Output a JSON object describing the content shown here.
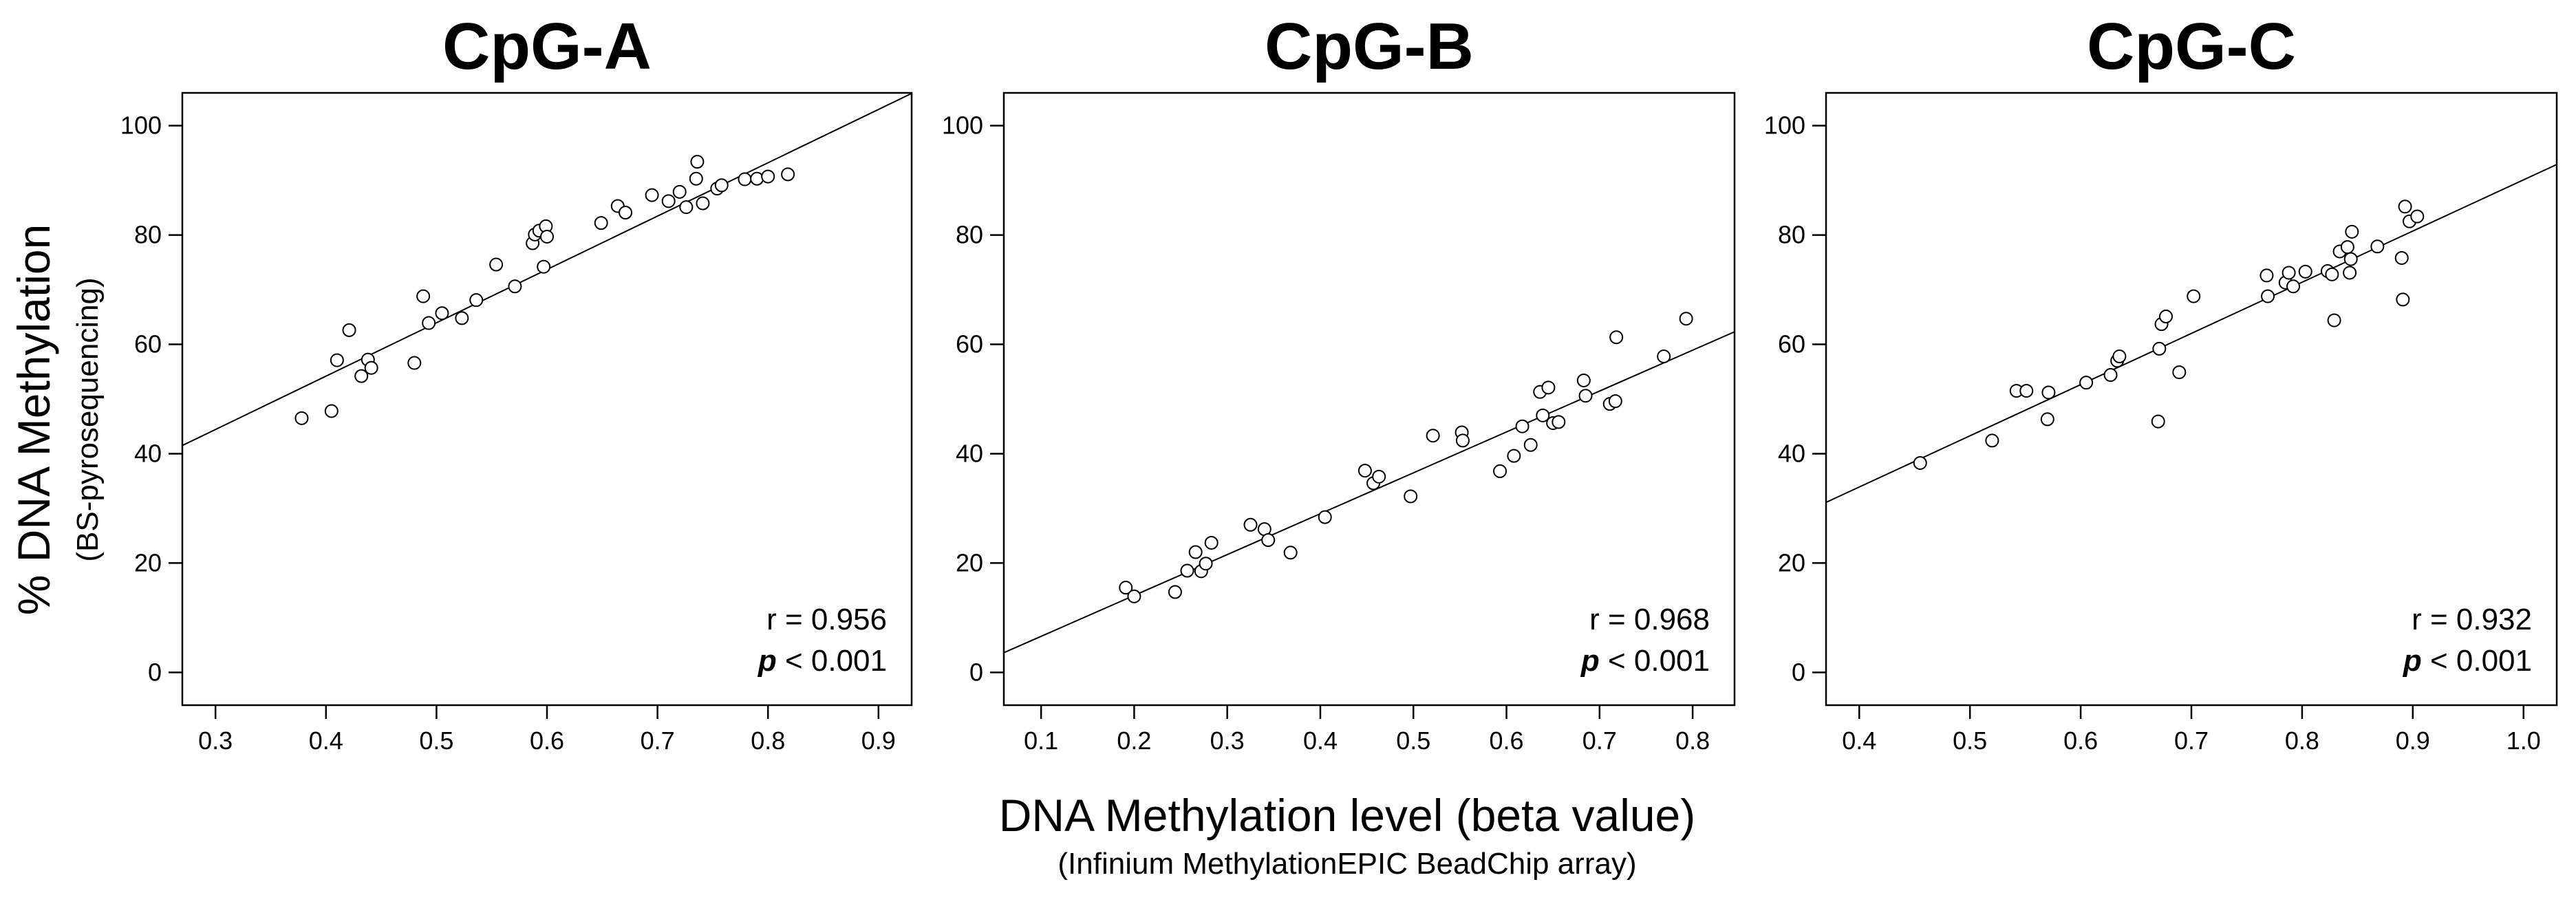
{
  "figure": {
    "ylabel_main": "% DNA Methylation",
    "ylabel_sub": "(BS-pyrosequencing)",
    "xlabel_main": "DNA Methylation level (beta value)",
    "xlabel_sub": "(Infinium MethylationEPIC BeadChip array)"
  },
  "chart_data": [
    {
      "type": "scatter",
      "title": "CpG-A",
      "xlabel": "DNA Methylation level (beta value)",
      "ylabel": "% DNA Methylation",
      "xlim": [
        0.27,
        0.93
      ],
      "ylim": [
        -6,
        106
      ],
      "xticks": [
        0.3,
        0.4,
        0.5,
        0.6,
        0.7,
        0.8,
        0.9
      ],
      "xtick_labels": [
        "0.3",
        "0.4",
        "0.5",
        "0.6",
        "0.7",
        "0.8",
        "0.9"
      ],
      "yticks": [
        0,
        20,
        40,
        60,
        80,
        100
      ],
      "ytick_labels": [
        "0",
        "20",
        "40",
        "60",
        "80",
        "100"
      ],
      "fit_line": {
        "x": [
          0.27,
          0.93
        ],
        "y": [
          41.5,
          105.9
        ]
      },
      "r_text": "r = 0.956",
      "p_italic": "p",
      "p_rest": " < 0.001",
      "points": [
        {
          "x": 0.378,
          "y": 46.5
        },
        {
          "x": 0.405,
          "y": 47.8
        },
        {
          "x": 0.41,
          "y": 57.1
        },
        {
          "x": 0.421,
          "y": 62.6
        },
        {
          "x": 0.432,
          "y": 54.2
        },
        {
          "x": 0.438,
          "y": 57.2
        },
        {
          "x": 0.441,
          "y": 55.7
        },
        {
          "x": 0.48,
          "y": 56.6
        },
        {
          "x": 0.488,
          "y": 68.8
        },
        {
          "x": 0.493,
          "y": 63.9
        },
        {
          "x": 0.505,
          "y": 65.7
        },
        {
          "x": 0.523,
          "y": 64.8
        },
        {
          "x": 0.536,
          "y": 68.1
        },
        {
          "x": 0.554,
          "y": 74.6
        },
        {
          "x": 0.571,
          "y": 70.6
        },
        {
          "x": 0.587,
          "y": 78.5
        },
        {
          "x": 0.589,
          "y": 80.1
        },
        {
          "x": 0.593,
          "y": 80.8
        },
        {
          "x": 0.597,
          "y": 74.2
        },
        {
          "x": 0.599,
          "y": 81.6
        },
        {
          "x": 0.6,
          "y": 79.7
        },
        {
          "x": 0.649,
          "y": 82.2
        },
        {
          "x": 0.664,
          "y": 85.3
        },
        {
          "x": 0.671,
          "y": 84.1
        },
        {
          "x": 0.695,
          "y": 87.3
        },
        {
          "x": 0.71,
          "y": 86.2
        },
        {
          "x": 0.72,
          "y": 87.9
        },
        {
          "x": 0.726,
          "y": 85.1
        },
        {
          "x": 0.735,
          "y": 90.3
        },
        {
          "x": 0.736,
          "y": 93.4
        },
        {
          "x": 0.741,
          "y": 85.8
        },
        {
          "x": 0.754,
          "y": 88.5
        },
        {
          "x": 0.758,
          "y": 89.1
        },
        {
          "x": 0.779,
          "y": 90.2
        },
        {
          "x": 0.79,
          "y": 90.3
        },
        {
          "x": 0.8,
          "y": 90.7
        },
        {
          "x": 0.818,
          "y": 91.1
        }
      ]
    },
    {
      "type": "scatter",
      "title": "CpG-B",
      "xlabel": "DNA Methylation level (beta value)",
      "ylabel": "% DNA Methylation",
      "xlim": [
        0.06,
        0.845
      ],
      "ylim": [
        -6,
        106
      ],
      "xticks": [
        0.1,
        0.2,
        0.3,
        0.4,
        0.5,
        0.6,
        0.7,
        0.8
      ],
      "xtick_labels": [
        "0.1",
        "0.2",
        "0.3",
        "0.4",
        "0.5",
        "0.6",
        "0.7",
        "0.8"
      ],
      "yticks": [
        0,
        20,
        40,
        60,
        80,
        100
      ],
      "ytick_labels": [
        "0",
        "20",
        "40",
        "60",
        "80",
        "100"
      ],
      "fit_line": {
        "x": [
          0.06,
          0.845
        ],
        "y": [
          3.6,
          62.3
        ]
      },
      "r_text": "r = 0.968",
      "p_italic": "p",
      "p_rest": " < 0.001",
      "points": [
        {
          "x": 0.191,
          "y": 15.5
        },
        {
          "x": 0.2,
          "y": 13.9
        },
        {
          "x": 0.244,
          "y": 14.7
        },
        {
          "x": 0.257,
          "y": 18.6
        },
        {
          "x": 0.266,
          "y": 22.0
        },
        {
          "x": 0.272,
          "y": 18.5
        },
        {
          "x": 0.277,
          "y": 19.9
        },
        {
          "x": 0.283,
          "y": 23.7
        },
        {
          "x": 0.325,
          "y": 27.0
        },
        {
          "x": 0.34,
          "y": 26.2
        },
        {
          "x": 0.344,
          "y": 24.2
        },
        {
          "x": 0.368,
          "y": 21.9
        },
        {
          "x": 0.405,
          "y": 28.4
        },
        {
          "x": 0.448,
          "y": 36.9
        },
        {
          "x": 0.457,
          "y": 34.6
        },
        {
          "x": 0.463,
          "y": 35.8
        },
        {
          "x": 0.497,
          "y": 32.2
        },
        {
          "x": 0.521,
          "y": 43.3
        },
        {
          "x": 0.552,
          "y": 43.9
        },
        {
          "x": 0.553,
          "y": 42.4
        },
        {
          "x": 0.593,
          "y": 36.8
        },
        {
          "x": 0.608,
          "y": 39.6
        },
        {
          "x": 0.617,
          "y": 45.0
        },
        {
          "x": 0.626,
          "y": 41.6
        },
        {
          "x": 0.636,
          "y": 51.3
        },
        {
          "x": 0.639,
          "y": 47.0
        },
        {
          "x": 0.645,
          "y": 52.1
        },
        {
          "x": 0.65,
          "y": 45.6
        },
        {
          "x": 0.656,
          "y": 45.8
        },
        {
          "x": 0.683,
          "y": 53.4
        },
        {
          "x": 0.685,
          "y": 50.6
        },
        {
          "x": 0.711,
          "y": 49.1
        },
        {
          "x": 0.717,
          "y": 49.6
        },
        {
          "x": 0.718,
          "y": 61.3
        },
        {
          "x": 0.769,
          "y": 57.8
        },
        {
          "x": 0.793,
          "y": 64.7
        }
      ]
    },
    {
      "type": "scatter",
      "title": "CpG-C",
      "xlabel": "DNA Methylation level (beta value)",
      "ylabel": "% DNA Methylation",
      "xlim": [
        0.37,
        1.03
      ],
      "ylim": [
        -6,
        106
      ],
      "xticks": [
        0.4,
        0.5,
        0.6,
        0.7,
        0.8,
        0.9,
        1.0
      ],
      "xtick_labels": [
        "0.4",
        "0.5",
        "0.6",
        "0.7",
        "0.8",
        "0.9",
        "1.0"
      ],
      "yticks": [
        0,
        20,
        40,
        60,
        80,
        100
      ],
      "ytick_labels": [
        "0",
        "20",
        "40",
        "60",
        "80",
        "100"
      ],
      "fit_line": {
        "x": [
          0.37,
          1.03
        ],
        "y": [
          31.1,
          92.9
        ]
      },
      "r_text": "r = 0.932",
      "p_italic": "p",
      "p_rest": " < 0.001",
      "points": [
        {
          "x": 0.455,
          "y": 38.3
        },
        {
          "x": 0.52,
          "y": 42.4
        },
        {
          "x": 0.542,
          "y": 51.5
        },
        {
          "x": 0.551,
          "y": 51.5
        },
        {
          "x": 0.57,
          "y": 46.3
        },
        {
          "x": 0.571,
          "y": 51.2
        },
        {
          "x": 0.605,
          "y": 53.0
        },
        {
          "x": 0.627,
          "y": 54.4
        },
        {
          "x": 0.633,
          "y": 57.0
        },
        {
          "x": 0.635,
          "y": 57.8
        },
        {
          "x": 0.67,
          "y": 45.9
        },
        {
          "x": 0.671,
          "y": 59.2
        },
        {
          "x": 0.673,
          "y": 63.7
        },
        {
          "x": 0.677,
          "y": 65.1
        },
        {
          "x": 0.689,
          "y": 54.9
        },
        {
          "x": 0.702,
          "y": 68.8
        },
        {
          "x": 0.768,
          "y": 72.6
        },
        {
          "x": 0.769,
          "y": 68.8
        },
        {
          "x": 0.785,
          "y": 71.3
        },
        {
          "x": 0.788,
          "y": 73.1
        },
        {
          "x": 0.792,
          "y": 70.6
        },
        {
          "x": 0.803,
          "y": 73.3
        },
        {
          "x": 0.823,
          "y": 73.4
        },
        {
          "x": 0.827,
          "y": 72.8
        },
        {
          "x": 0.829,
          "y": 64.4
        },
        {
          "x": 0.834,
          "y": 77.0
        },
        {
          "x": 0.841,
          "y": 77.8
        },
        {
          "x": 0.843,
          "y": 73.1
        },
        {
          "x": 0.844,
          "y": 75.6
        },
        {
          "x": 0.845,
          "y": 80.6
        },
        {
          "x": 0.868,
          "y": 77.9
        },
        {
          "x": 0.89,
          "y": 75.8
        },
        {
          "x": 0.891,
          "y": 68.2
        },
        {
          "x": 0.893,
          "y": 85.2
        },
        {
          "x": 0.897,
          "y": 82.5
        },
        {
          "x": 0.904,
          "y": 83.4
        }
      ]
    }
  ]
}
